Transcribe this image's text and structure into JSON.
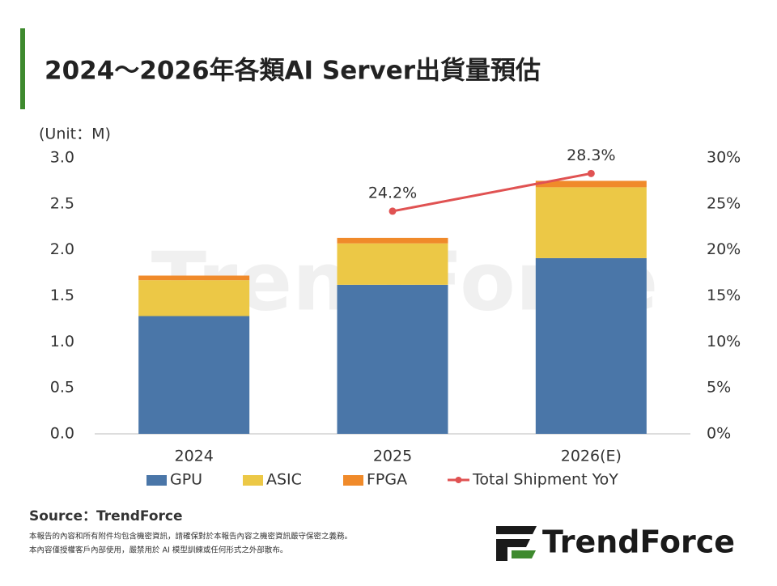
{
  "chart_data": {
    "type": "bar",
    "stacked": true,
    "title": "2024～2026年各類AI Server出貨量預估",
    "unit_label": "(Unit：M)",
    "categories": [
      "2024",
      "2025",
      "2026(E)"
    ],
    "series": [
      {
        "name": "GPU",
        "color": "#4a76a8",
        "values": [
          1.28,
          1.62,
          1.91
        ]
      },
      {
        "name": "ASIC",
        "color": "#ecc846",
        "values": [
          0.39,
          0.45,
          0.77
        ]
      },
      {
        "name": "FPGA",
        "color": "#f08a2a",
        "values": [
          0.05,
          0.06,
          0.07
        ]
      },
      {
        "name": "Total Shipment YoY",
        "type": "line",
        "axis": "y2",
        "color": "#e05252",
        "values": [
          null,
          24.2,
          28.3
        ],
        "value_labels": [
          null,
          "24.2%",
          "28.3%"
        ]
      }
    ],
    "ylim": [
      0,
      3
    ],
    "yticks": [
      {
        "value": 0,
        "label": "0.0"
      },
      0.5,
      {
        "value": 1,
        "label": "1.0"
      },
      1.5,
      {
        "value": 2,
        "label": "2.0"
      },
      2.5,
      {
        "value": 3,
        "label": "3.0"
      }
    ],
    "y2lim": [
      0,
      30
    ],
    "y2ticks": [
      {
        "value": 0,
        "label": "0%"
      },
      {
        "value": 5,
        "label": "5%"
      },
      {
        "value": 10,
        "label": "10%"
      },
      {
        "value": 15,
        "label": "15%"
      },
      {
        "value": 20,
        "label": "20%"
      },
      {
        "value": 25,
        "label": "25%"
      },
      {
        "value": 30,
        "label": "30%"
      }
    ],
    "grid": false
  },
  "watermark": "TrendForce",
  "source": "Source：TrendForce",
  "disclaimer": [
    "本報告的內容和所有附件均包含機密資訊，請確保對於本報告內容之機密資訊嚴守保密之義務。",
    "本內容僅授權客戶內部使用，嚴禁用於 AI 模型訓練或任何形式之外部散布。"
  ],
  "logo": "TrendForce"
}
